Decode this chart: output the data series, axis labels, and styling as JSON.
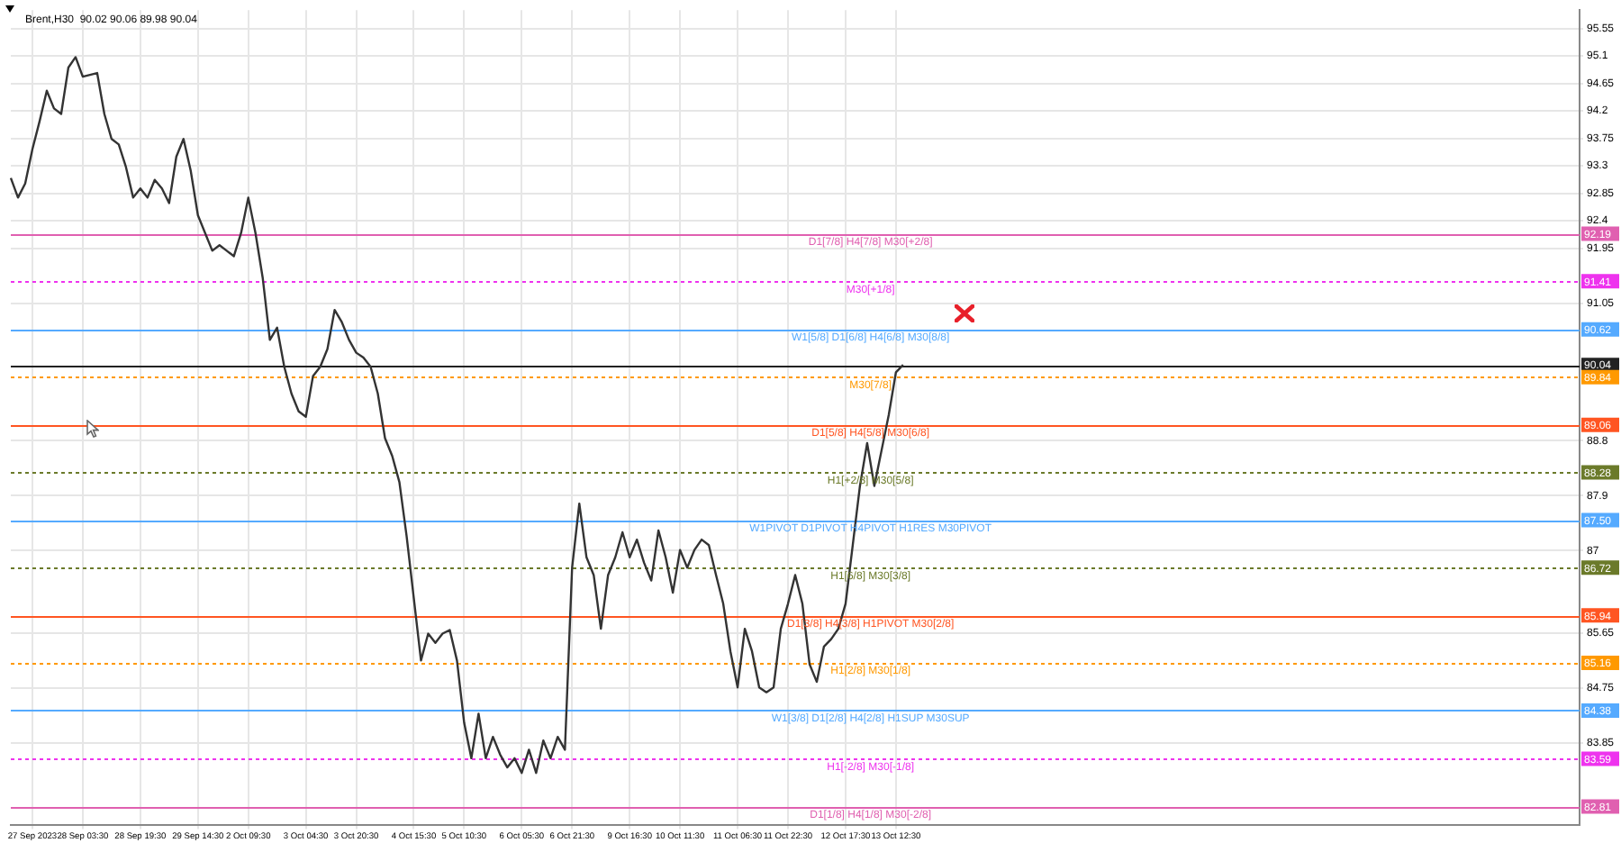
{
  "chart_data": {
    "type": "line",
    "title": "Brent,H30  90.02 90.06 89.98 90.04",
    "categories": [
      null,
      null,
      null,
      "27 Sep 2023",
      null,
      null,
      null,
      null,
      null,
      null,
      "28 Sep 03:30",
      null,
      null,
      null,
      null,
      null,
      null,
      null,
      "28 Sep 19:30",
      null,
      null,
      null,
      null,
      null,
      null,
      null,
      "29 Sep 14:30",
      null,
      null,
      null,
      null,
      null,
      null,
      "2 Oct 09:30",
      null,
      null,
      null,
      null,
      null,
      null,
      null,
      "3 Oct 04:30",
      null,
      null,
      null,
      null,
      null,
      null,
      "3 Oct 20:30",
      null,
      null,
      null,
      null,
      null,
      null,
      null,
      "4 Oct 15:30",
      null,
      null,
      null,
      null,
      null,
      null,
      "5 Oct 10:30",
      null,
      null,
      null,
      null,
      null,
      null,
      null,
      "6 Oct 05:30",
      null,
      null,
      null,
      null,
      null,
      null,
      "6 Oct 21:30",
      null,
      null,
      null,
      null,
      null,
      null,
      null,
      "9 Oct 16:30",
      null,
      null,
      null,
      null,
      null,
      null,
      "10 Oct 11:30",
      null,
      null,
      null,
      null,
      null,
      null,
      null,
      "11 Oct 06:30",
      null,
      null,
      null,
      null,
      null,
      null,
      "11 Oct 22:30",
      null,
      null,
      null,
      null,
      null,
      null,
      null,
      "12 Oct 17:30",
      null,
      null,
      null,
      null,
      null,
      null,
      "13 Oct 12:30",
      null,
      null,
      null,
      null,
      null,
      null,
      null,
      null,
      null,
      null,
      null,
      null,
      null,
      null,
      null,
      null,
      null,
      null,
      null,
      null,
      null,
      null,
      null,
      null,
      null,
      null,
      null,
      null,
      null,
      null,
      null,
      null,
      null,
      null,
      null,
      null,
      null,
      null,
      null,
      null,
      null,
      null,
      null,
      null,
      null,
      null,
      null,
      null,
      null,
      null,
      null,
      null,
      null,
      null,
      null,
      null,
      null,
      null,
      null,
      null,
      null,
      null,
      null,
      null,
      null,
      null,
      null,
      null,
      null,
      null,
      null,
      null,
      null,
      null,
      null,
      null,
      null,
      null,
      null,
      null,
      null,
      null,
      null,
      null,
      null,
      null,
      null,
      null,
      null,
      null,
      null,
      null,
      null,
      null,
      null
    ],
    "ylim": [
      82.5,
      95.85
    ],
    "yticks": [
      95.55,
      95.1,
      94.65,
      94.2,
      93.75,
      93.3,
      92.85,
      92.4,
      91.95,
      91.05,
      88.8,
      87.9,
      87.0,
      85.65,
      84.75,
      83.85
    ],
    "annotations": [
      {
        "text": "92.19",
        "y": 92.19
      },
      {
        "text": "91.41",
        "y": 91.41
      },
      {
        "text": "90.62",
        "y": 90.62
      },
      {
        "text": "90.04",
        "y": 90.04
      },
      {
        "text": "89.84",
        "y": 89.84
      },
      {
        "text": "89.06",
        "y": 89.06
      },
      {
        "text": "88.28",
        "y": 88.28
      },
      {
        "text": "87.50",
        "y": 87.5
      },
      {
        "text": "86.72",
        "y": 86.72
      },
      {
        "text": "85.94",
        "y": 85.94
      },
      {
        "text": "85.16",
        "y": 85.16
      },
      {
        "text": "84.38",
        "y": 84.38
      },
      {
        "text": "83.59",
        "y": 83.59
      },
      {
        "text": "82.81",
        "y": 82.81
      }
    ],
    "grid": true,
    "legend": false,
    "marker": "none",
    "line_style": "solid",
    "series": [
      {
        "color": "#333333",
        "values": [
          93.1,
          92.78,
          93.01,
          93.57,
          94.03,
          94.53,
          94.24,
          94.15,
          94.91,
          95.08,
          94.76,
          94.79,
          94.82,
          94.15,
          93.74,
          93.65,
          93.28,
          92.78,
          92.93,
          92.78,
          93.07,
          92.93,
          92.69,
          93.45,
          93.74,
          93.22,
          92.49,
          92.2,
          91.91,
          92.0,
          91.91,
          91.82,
          92.2,
          92.78,
          92.2,
          91.47,
          90.45,
          90.65,
          90.01,
          89.57,
          89.28,
          89.19,
          89.86,
          90.01,
          90.3,
          90.94,
          90.74,
          90.45,
          90.24,
          90.16,
          90.01,
          89.57,
          88.84,
          88.55,
          88.12,
          87.24,
          86.22,
          85.2,
          85.64,
          85.49,
          85.64,
          85.7,
          85.2,
          84.18,
          83.6,
          84.33,
          83.6,
          83.95,
          83.66,
          83.45,
          83.6,
          83.36,
          83.74,
          83.36,
          83.89,
          83.6,
          83.95,
          83.74,
          86.72,
          87.77,
          86.89,
          86.6,
          85.72,
          86.6,
          86.89,
          87.3,
          86.89,
          87.18,
          86.8,
          86.51,
          87.33,
          86.89,
          86.31,
          87.01,
          86.72,
          87.01,
          87.18,
          87.09,
          86.6,
          86.13,
          85.35,
          84.76,
          85.72,
          85.35,
          84.76,
          84.68,
          84.76,
          85.72,
          86.13,
          86.6,
          86.13,
          85.14,
          84.85,
          85.43,
          85.55,
          85.72,
          86.13,
          87.09,
          88.06,
          88.76,
          88.06,
          88.64,
          89.22,
          89.92,
          90.04,
          null,
          null,
          null,
          null,
          null,
          null,
          null,
          null,
          null,
          null,
          null,
          null,
          null,
          null,
          null,
          null,
          null,
          null,
          null,
          null,
          null,
          null,
          null,
          null,
          null,
          null,
          null,
          null,
          null,
          null,
          null,
          null,
          null,
          null,
          null,
          null,
          null,
          null,
          null,
          null,
          null,
          null,
          null,
          null,
          null,
          null,
          null,
          null,
          null,
          null,
          null,
          null,
          null,
          null,
          null,
          null,
          null,
          null,
          null,
          null,
          null,
          null,
          null,
          null,
          null,
          null,
          null,
          null,
          null,
          null,
          null,
          null,
          null,
          null,
          null,
          null,
          null,
          null,
          null,
          null,
          null,
          null,
          null,
          null,
          null,
          null,
          null,
          null,
          null,
          null,
          null,
          null,
          null,
          null
        ]
      }
    ],
    "ref_lines": [
      {
        "axis": "y",
        "value": 92.19,
        "label": "D1[7/8] H4[7/8] M30[+2/8]",
        "color": "#e060b0",
        "line_style": "solid"
      },
      {
        "axis": "y",
        "value": 91.41,
        "label": "M30[+1/8]",
        "color": "#ee33ee",
        "line_style": "dotted"
      },
      {
        "axis": "y",
        "value": 90.62,
        "label": "W1[5/8] D1[6/8] H4[6/8] M30[8/8]",
        "color": "#55aaff",
        "line_style": "solid"
      },
      {
        "axis": "y",
        "value": 90.04,
        "color": "#222222",
        "line_style": "solid"
      },
      {
        "axis": "y",
        "value": 89.84,
        "label": "M30[7/8]",
        "color": "#ff9900",
        "line_style": "dotted"
      },
      {
        "axis": "y",
        "value": 89.06,
        "label": "D1[5/8] H4[5/8] M30[6/8]",
        "color": "#ff5522",
        "line_style": "solid"
      },
      {
        "axis": "y",
        "value": 88.28,
        "label": "H1[+2/8] M30[5/8]",
        "color": "#6b7a2a",
        "line_style": "dotted"
      },
      {
        "axis": "y",
        "value": 87.5,
        "label": "W1PIVOT D1PIVOT H4PIVOT H1RES M30PIVOT",
        "color": "#55aaff",
        "line_style": "solid"
      },
      {
        "axis": "y",
        "value": 86.72,
        "label": "H1[6/8] M30[3/8]",
        "color": "#6b7a2a",
        "line_style": "dotted"
      },
      {
        "axis": "y",
        "value": 85.94,
        "label": "D1[3/8] H4[3/8] H1PIVOT M30[2/8]",
        "color": "#ff5522",
        "line_style": "solid"
      },
      {
        "axis": "y",
        "value": 85.16,
        "label": "H1[2/8] M30[1/8]",
        "color": "#ff9900",
        "line_style": "dotted"
      },
      {
        "axis": "y",
        "value": 84.38,
        "label": "W1[3/8] D1[2/8] H4[2/8] H1SUP M30SUP",
        "color": "#55aaff",
        "line_style": "solid"
      },
      {
        "axis": "y",
        "value": 83.59,
        "label": "H1[-2/8] M30[-1/8]",
        "color": "#ee33ee",
        "line_style": "dotted"
      },
      {
        "axis": "y",
        "value": 82.81,
        "label": "D1[1/8] H4[1/8] M30[-2/8]",
        "color": "#e060b0",
        "line_style": "solid"
      }
    ]
  }
}
